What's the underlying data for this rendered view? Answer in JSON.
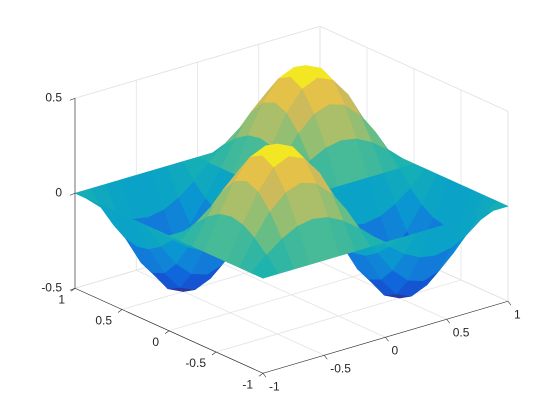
{
  "chart_data": {
    "type": "surface",
    "colormap": "parula",
    "grid": true,
    "x": [
      -1,
      -0.875,
      -0.75,
      -0.625,
      -0.5,
      -0.375,
      -0.25,
      -0.125,
      0,
      0.125,
      0.25,
      0.375,
      0.5,
      0.625,
      0.75,
      0.875,
      1
    ],
    "y": [
      -1,
      -0.875,
      -0.75,
      -0.625,
      -0.5,
      -0.375,
      -0.25,
      -0.125,
      0,
      0.125,
      0.25,
      0.375,
      0.5,
      0.625,
      0.75,
      0.875,
      1
    ],
    "z": [
      [
        0,
        0,
        0,
        0,
        0,
        0,
        0,
        0,
        0,
        0,
        0,
        0,
        0,
        0,
        0,
        0,
        0
      ],
      [
        0,
        0.0732,
        0.1353,
        0.1768,
        0.1913,
        0.1768,
        0.1353,
        0.0732,
        0,
        -0.0732,
        -0.1353,
        -0.1768,
        -0.1913,
        -0.1768,
        -0.1353,
        -0.0732,
        0
      ],
      [
        0,
        0.1353,
        0.25,
        0.3266,
        0.3536,
        0.3266,
        0.25,
        0.1353,
        0,
        -0.1353,
        -0.25,
        -0.3266,
        -0.3536,
        -0.3266,
        -0.25,
        -0.1353,
        0
      ],
      [
        0,
        0.1768,
        0.3266,
        0.4268,
        0.4619,
        0.4268,
        0.3266,
        0.1768,
        0,
        -0.1768,
        -0.3266,
        -0.4268,
        -0.4619,
        -0.4268,
        -0.3266,
        -0.1768,
        0
      ],
      [
        0,
        0.1913,
        0.3536,
        0.4619,
        0.5,
        0.4619,
        0.3536,
        0.1913,
        0,
        -0.1913,
        -0.3536,
        -0.4619,
        -0.5,
        -0.4619,
        -0.3536,
        -0.1913,
        0
      ],
      [
        0,
        0.1768,
        0.3266,
        0.4268,
        0.4619,
        0.4268,
        0.3266,
        0.1768,
        0,
        -0.1768,
        -0.3266,
        -0.4268,
        -0.4619,
        -0.4268,
        -0.3266,
        -0.1768,
        0
      ],
      [
        0,
        0.1353,
        0.25,
        0.3266,
        0.3536,
        0.3266,
        0.25,
        0.1353,
        0,
        -0.1353,
        -0.25,
        -0.3266,
        -0.3536,
        -0.3266,
        -0.25,
        -0.1353,
        0
      ],
      [
        0,
        0.0732,
        0.1353,
        0.1768,
        0.1913,
        0.1768,
        0.1353,
        0.0732,
        0,
        -0.0732,
        -0.1353,
        -0.1768,
        -0.1913,
        -0.1768,
        -0.1353,
        -0.0732,
        0
      ],
      [
        0,
        0,
        0,
        0,
        0,
        0,
        0,
        0,
        0,
        0,
        0,
        0,
        0,
        0,
        0,
        0,
        0
      ],
      [
        0,
        -0.0732,
        -0.1353,
        -0.1768,
        -0.1913,
        -0.1768,
        -0.1353,
        -0.0732,
        0,
        0.0732,
        0.1353,
        0.1768,
        0.1913,
        0.1768,
        0.1353,
        0.0732,
        0
      ],
      [
        0,
        -0.1353,
        -0.25,
        -0.3266,
        -0.3536,
        -0.3266,
        -0.25,
        -0.1353,
        0,
        0.1353,
        0.25,
        0.3266,
        0.3536,
        0.3266,
        0.25,
        0.1353,
        0
      ],
      [
        0,
        -0.1768,
        -0.3266,
        -0.4268,
        -0.4619,
        -0.4268,
        -0.3266,
        -0.1768,
        0,
        0.1768,
        0.3266,
        0.4268,
        0.4619,
        0.4268,
        0.3266,
        0.1768,
        0
      ],
      [
        0,
        -0.1913,
        -0.3536,
        -0.4619,
        -0.5,
        -0.4619,
        -0.3536,
        -0.1913,
        0,
        0.1913,
        0.3536,
        0.4619,
        0.5,
        0.4619,
        0.3536,
        0.1913,
        0
      ],
      [
        0,
        -0.1768,
        -0.3266,
        -0.4268,
        -0.4619,
        -0.4268,
        -0.3266,
        -0.1768,
        0,
        0.1768,
        0.3266,
        0.4268,
        0.4619,
        0.4268,
        0.3266,
        0.1768,
        0
      ],
      [
        0,
        -0.1353,
        -0.25,
        -0.3266,
        -0.3536,
        -0.3266,
        -0.25,
        -0.1353,
        0,
        0.1353,
        0.25,
        0.3266,
        0.3536,
        0.3266,
        0.25,
        0.1353,
        0
      ],
      [
        0,
        -0.0732,
        -0.1353,
        -0.1768,
        -0.1913,
        -0.1768,
        -0.1353,
        -0.0732,
        0,
        0.0732,
        0.1353,
        0.1768,
        0.1913,
        0.1768,
        0.1353,
        0.0732,
        0
      ],
      [
        0,
        0,
        0,
        0,
        0,
        0,
        0,
        0,
        0,
        0,
        0,
        0,
        0,
        0,
        0,
        0,
        0
      ]
    ],
    "xlim": [
      -1,
      1
    ],
    "ylim": [
      -1,
      1
    ],
    "zlim": [
      -0.5,
      0.5
    ],
    "xticks": [
      -1,
      -0.5,
      0,
      0.5,
      1
    ],
    "yticks": [
      -1,
      -0.5,
      0,
      0.5,
      1
    ],
    "zticks": [
      -0.5,
      0,
      0.5
    ]
  }
}
